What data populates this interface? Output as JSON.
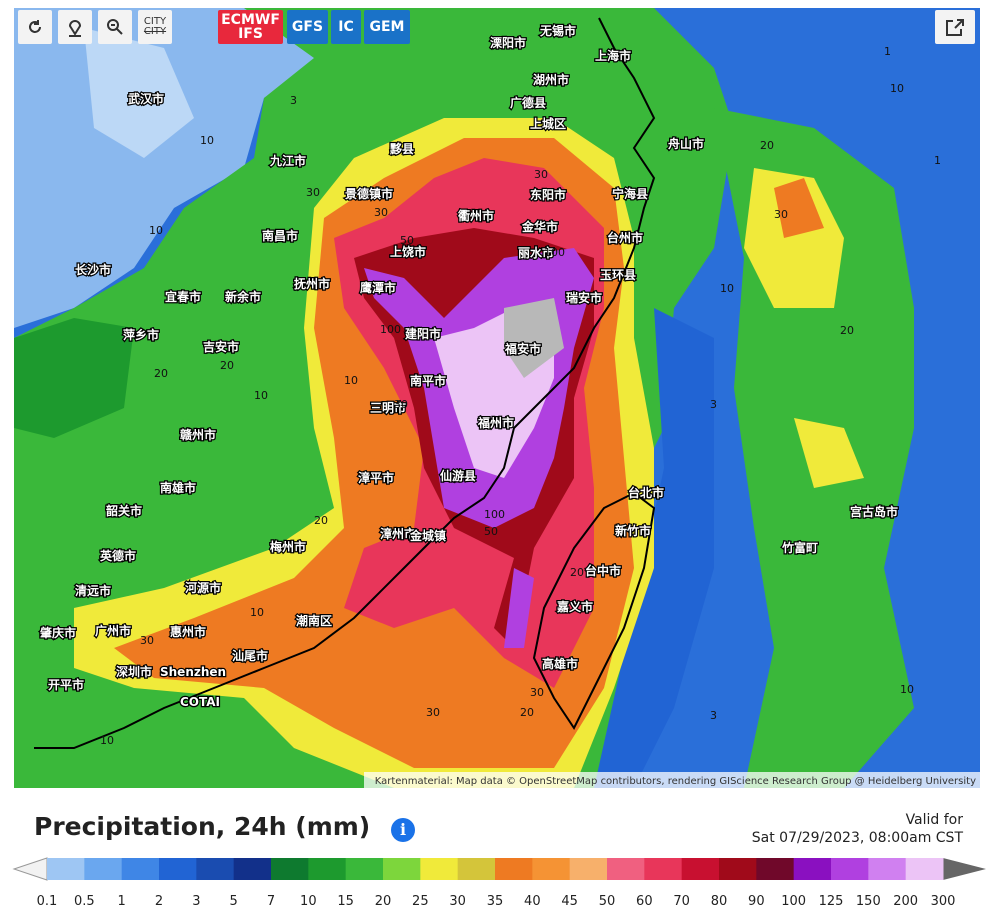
{
  "toolbar": {
    "city_top": "CITY",
    "city_bottom": "CITY"
  },
  "models": [
    {
      "line1": "ECMWF",
      "line2": "IFS"
    },
    {
      "line1": "GFS"
    },
    {
      "line1": "IC"
    },
    {
      "line1": "GEM"
    }
  ],
  "map": {
    "attribution": "Kartenmaterial: Map data © OpenStreetMap contributors, rendering GIScience Research Group @ Heidelberg University",
    "places": [
      "上海市",
      "无锡市",
      "溧阳市",
      "湖州市",
      "广德县",
      "上城区",
      "宁海县",
      "舟山市",
      "台州市",
      "玉环县",
      "瑞安市",
      "东阳市",
      "金华市",
      "丽水市",
      "衢州市",
      "上饶市",
      "鹰潭市",
      "建阳市",
      "南平市",
      "三明市",
      "福安市",
      "福州市",
      "仙游县",
      "漳平市",
      "漳州市",
      "金城镇",
      "梅州市",
      "汕尾市",
      "潮南区",
      "河源市",
      "惠州市",
      "广州市",
      "清远市",
      "英德市",
      "韶关市",
      "南雄市",
      "肇庆市",
      "开平市",
      "深圳市",
      "Shenzhen",
      "COTAI",
      "赣州市",
      "吉安市",
      "新余市",
      "宜春市",
      "萍乡市",
      "长沙市",
      "抚州市",
      "南昌市",
      "九江市",
      "武汉市",
      "景德镇市",
      "黟县",
      "台北市",
      "新竹市",
      "台中市",
      "嘉义市",
      "高雄市",
      "宫古岛市",
      "竹富町"
    ],
    "contours": [
      30,
      30,
      50,
      100,
      100,
      100,
      50,
      30,
      20,
      10,
      10,
      20,
      30,
      10,
      20,
      10,
      10,
      30,
      20,
      30,
      10,
      3,
      3,
      10,
      30,
      20,
      1,
      1,
      3,
      10,
      20,
      30,
      10,
      20
    ]
  },
  "legend": {
    "title": "Precipitation, 24h (mm)",
    "valid_label": "Valid for",
    "valid_time": "Sat 07/29/2023, 08:00am CST",
    "labels": [
      0.1,
      0.5,
      1,
      2,
      3,
      5,
      7,
      10,
      15,
      20,
      25,
      30,
      35,
      40,
      45,
      50,
      60,
      70,
      80,
      90,
      100,
      125,
      150,
      200,
      300
    ],
    "colors": [
      "#9ec6f3",
      "#6aa7ef",
      "#3f86e6",
      "#2164d4",
      "#1a4cb0",
      "#12308a",
      "#0e7a2f",
      "#1d9a2e",
      "#3ab83a",
      "#7dd63c",
      "#f0ea3a",
      "#d4c53a",
      "#ee7a22",
      "#f59334",
      "#f7b06b",
      "#f06080",
      "#e8365a",
      "#c81030",
      "#a00a1a",
      "#70082a",
      "#8a10c0",
      "#b040e0",
      "#d080f0",
      "#ecc4f6",
      "#b8b8b8"
    ],
    "under_color": "#f2f2f2",
    "over_color": "#666666"
  }
}
